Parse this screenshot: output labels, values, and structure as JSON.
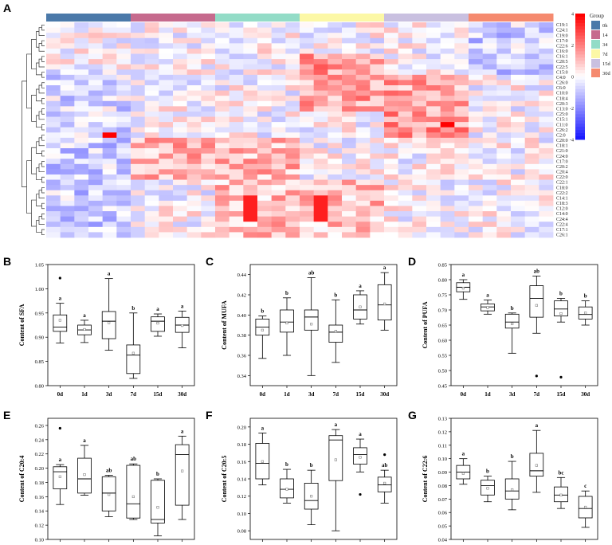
{
  "figure_letters": [
    "A",
    "B",
    "C",
    "D",
    "E",
    "F",
    "G"
  ],
  "colors": {
    "heat_low": "#1a1aff",
    "heat_mid": "#ffffff",
    "heat_high": "#ff0000",
    "box_stroke": "#000000",
    "box_fill": "#ffffff"
  },
  "chart_data": [
    {
      "type": "heatmap",
      "title": "",
      "legend_title": "Group",
      "groups": [
        {
          "name": "0h",
          "color": "#4b79a9"
        },
        {
          "name": "14",
          "color": "#c66a8d"
        },
        {
          "name": "34",
          "color": "#93dcc7"
        },
        {
          "name": "7d",
          "color": "#fcf8a6"
        },
        {
          "name": "15d",
          "color": "#c9c0e0"
        },
        {
          "name": "30d",
          "color": "#f58a6f"
        }
      ],
      "columns_per_group": 6,
      "rows": [
        "C19:1",
        "C24:1",
        "C19:0",
        "C17:0",
        "C22:6",
        "C16:0",
        "C16:1",
        "C20:5",
        "C22:5",
        "C15:0",
        "C4:0",
        "C26:0",
        "C6:0",
        "C10:0",
        "C18:4",
        "C20:3",
        "C13:0",
        "C25:0",
        "C15:1",
        "C11:0",
        "C26:2",
        "C2:0",
        "C20:0",
        "C18:1",
        "C21:0",
        "C24:0",
        "C17:0",
        "C20:2",
        "C20:4",
        "C22:0",
        "C22:1",
        "C18:0",
        "C22:2",
        "C14:1",
        "C18:3",
        "C12:0",
        "C14:0",
        "C24:4",
        "C22:4",
        "C17:1",
        "C26:1"
      ],
      "colorbar": {
        "min": -4,
        "max": 4,
        "ticks": [
          "4",
          "2",
          "0",
          "-2",
          "-4"
        ]
      }
    },
    {
      "type": "box",
      "panel": "B",
      "ylabel": "Content of SFA",
      "categories": [
        "0d",
        "1d",
        "3d",
        "7d",
        "15d",
        "30d"
      ],
      "ylim": [
        0.8,
        1.05
      ],
      "yticks": [
        "0.80",
        "0.85",
        "0.90",
        "0.95",
        "1.00",
        "1.05"
      ],
      "boxes": [
        {
          "whislo": 0.888,
          "q1": 0.912,
          "med": 0.921,
          "q3": 0.946,
          "whishi": 0.97,
          "mean": 0.935,
          "outliers": [
            1.022
          ],
          "letter": "a"
        },
        {
          "whislo": 0.889,
          "q1": 0.905,
          "med": 0.915,
          "q3": 0.925,
          "whishi": 0.935,
          "mean": 0.916,
          "outliers": [],
          "letter": "a"
        },
        {
          "whislo": 0.873,
          "q1": 0.897,
          "med": 0.933,
          "q3": 0.953,
          "whishi": 1.021,
          "mean": 0.93,
          "outliers": [],
          "letter": "a"
        },
        {
          "whislo": 0.815,
          "q1": 0.825,
          "med": 0.863,
          "q3": 0.884,
          "whishi": 0.95,
          "mean": 0.867,
          "outliers": [],
          "letter": "b"
        },
        {
          "whislo": 0.902,
          "q1": 0.912,
          "med": 0.933,
          "q3": 0.942,
          "whishi": 0.948,
          "mean": 0.929,
          "outliers": [],
          "letter": "a"
        },
        {
          "whislo": 0.878,
          "q1": 0.91,
          "med": 0.925,
          "q3": 0.941,
          "whishi": 0.954,
          "mean": 0.924,
          "outliers": [],
          "letter": "a"
        }
      ]
    },
    {
      "type": "box",
      "panel": "C",
      "ylabel": "Content of MUFA",
      "categories": [
        "0d",
        "1d",
        "3d",
        "7d",
        "15d",
        "30d"
      ],
      "ylim": [
        0.33,
        0.45
      ],
      "yticks": [
        "0.34",
        "0.36",
        "0.38",
        "0.40",
        "0.42",
        "0.44"
      ],
      "boxes": [
        {
          "whislo": 0.357,
          "q1": 0.38,
          "med": 0.388,
          "q3": 0.396,
          "whishi": 0.399,
          "mean": 0.385,
          "outliers": [],
          "letter": "b"
        },
        {
          "whislo": 0.36,
          "q1": 0.383,
          "med": 0.393,
          "q3": 0.405,
          "whishi": 0.417,
          "mean": 0.392,
          "outliers": [],
          "letter": "b"
        },
        {
          "whislo": 0.34,
          "q1": 0.385,
          "med": 0.398,
          "q3": 0.405,
          "whishi": 0.437,
          "mean": 0.391,
          "outliers": [],
          "letter": "ab"
        },
        {
          "whislo": 0.353,
          "q1": 0.373,
          "med": 0.383,
          "q3": 0.39,
          "whishi": 0.415,
          "mean": 0.384,
          "outliers": [],
          "letter": "b"
        },
        {
          "whislo": 0.391,
          "q1": 0.396,
          "med": 0.405,
          "q3": 0.42,
          "whishi": 0.424,
          "mean": 0.408,
          "outliers": [],
          "letter": "a"
        },
        {
          "whislo": 0.385,
          "q1": 0.395,
          "med": 0.41,
          "q3": 0.43,
          "whishi": 0.442,
          "mean": 0.411,
          "outliers": [],
          "letter": "a"
        }
      ]
    },
    {
      "type": "box",
      "panel": "D",
      "ylabel": "Content of PUFA",
      "categories": [
        "0d",
        "1d",
        "3d",
        "7d",
        "15d",
        "30d"
      ],
      "ylim": [
        0.45,
        0.85
      ],
      "yticks": [
        "0.45",
        "0.50",
        "0.55",
        "0.60",
        "0.65",
        "0.70",
        "0.75",
        "0.80",
        "0.85"
      ],
      "boxes": [
        {
          "whislo": 0.735,
          "q1": 0.76,
          "med": 0.775,
          "q3": 0.79,
          "whishi": 0.8,
          "mean": 0.772,
          "outliers": [],
          "letter": "a"
        },
        {
          "whislo": 0.686,
          "q1": 0.697,
          "med": 0.71,
          "q3": 0.72,
          "whishi": 0.733,
          "mean": 0.708,
          "outliers": [],
          "letter": "a"
        },
        {
          "whislo": 0.557,
          "q1": 0.64,
          "med": 0.66,
          "q3": 0.686,
          "whishi": 0.69,
          "mean": 0.654,
          "outliers": [],
          "letter": "b"
        },
        {
          "whislo": 0.623,
          "q1": 0.676,
          "med": 0.738,
          "q3": 0.78,
          "whishi": 0.812,
          "mean": 0.715,
          "outliers": [
            0.482
          ],
          "letter": "ab"
        },
        {
          "whislo": 0.66,
          "q1": 0.68,
          "med": 0.703,
          "q3": 0.73,
          "whishi": 0.738,
          "mean": 0.688,
          "outliers": [
            0.478
          ],
          "letter": "b"
        },
        {
          "whislo": 0.65,
          "q1": 0.67,
          "med": 0.685,
          "q3": 0.71,
          "whishi": 0.73,
          "mean": 0.69,
          "outliers": [],
          "letter": "b"
        }
      ]
    },
    {
      "type": "box",
      "panel": "E",
      "ylabel": "Content of C20:4",
      "categories": [
        "0d",
        "1d",
        "3d",
        "7d",
        "15d",
        "30d"
      ],
      "ylim": [
        0.1,
        0.27
      ],
      "yticks": [
        "0.10",
        "0.12",
        "0.14",
        "0.16",
        "0.18",
        "0.20",
        "0.22",
        "0.24",
        "0.26"
      ],
      "boxes": [
        {
          "whislo": 0.149,
          "q1": 0.171,
          "med": 0.195,
          "q3": 0.202,
          "whishi": 0.205,
          "mean": 0.188,
          "outliers": [
            0.256
          ],
          "letter": "a"
        },
        {
          "whislo": 0.162,
          "q1": 0.165,
          "med": 0.185,
          "q3": 0.214,
          "whishi": 0.232,
          "mean": 0.191,
          "outliers": [],
          "letter": "a"
        },
        {
          "whislo": 0.132,
          "q1": 0.14,
          "med": 0.165,
          "q3": 0.188,
          "whishi": 0.19,
          "mean": 0.163,
          "outliers": [],
          "letter": "ab"
        },
        {
          "whislo": 0.128,
          "q1": 0.13,
          "med": 0.15,
          "q3": 0.204,
          "whishi": 0.206,
          "mean": 0.16,
          "outliers": [],
          "letter": "ab"
        },
        {
          "whislo": 0.105,
          "q1": 0.123,
          "med": 0.128,
          "q3": 0.183,
          "whishi": 0.185,
          "mean": 0.145,
          "outliers": [],
          "letter": "b"
        },
        {
          "whislo": 0.128,
          "q1": 0.148,
          "med": 0.219,
          "q3": 0.233,
          "whishi": 0.245,
          "mean": 0.196,
          "outliers": [],
          "letter": "a"
        }
      ]
    },
    {
      "type": "box",
      "panel": "F",
      "ylabel": "Content of C20:5",
      "categories": [
        "0d",
        "1d",
        "3d",
        "7d",
        "15d",
        "30d"
      ],
      "ylim": [
        0.07,
        0.21
      ],
      "yticks": [
        "0.08",
        "0.10",
        "0.12",
        "0.14",
        "0.16",
        "0.18",
        "0.20"
      ],
      "boxes": [
        {
          "whislo": 0.133,
          "q1": 0.14,
          "med": 0.158,
          "q3": 0.181,
          "whishi": 0.193,
          "mean": 0.16,
          "outliers": [],
          "letter": "a"
        },
        {
          "whislo": 0.112,
          "q1": 0.118,
          "med": 0.128,
          "q3": 0.14,
          "whishi": 0.151,
          "mean": 0.128,
          "outliers": [],
          "letter": "b"
        },
        {
          "whislo": 0.087,
          "q1": 0.105,
          "med": 0.115,
          "q3": 0.135,
          "whishi": 0.15,
          "mean": 0.12,
          "outliers": [],
          "letter": "b"
        },
        {
          "whislo": 0.08,
          "q1": 0.138,
          "med": 0.185,
          "q3": 0.19,
          "whishi": 0.197,
          "mean": 0.162,
          "outliers": [],
          "letter": "a"
        },
        {
          "whislo": 0.148,
          "q1": 0.157,
          "med": 0.168,
          "q3": 0.176,
          "whishi": 0.186,
          "mean": 0.165,
          "outliers": [
            0.122
          ],
          "letter": "a"
        },
        {
          "whislo": 0.112,
          "q1": 0.125,
          "med": 0.133,
          "q3": 0.142,
          "whishi": 0.15,
          "mean": 0.135,
          "outliers": [
            0.168
          ],
          "letter": "ab"
        }
      ]
    },
    {
      "type": "box",
      "panel": "G",
      "ylabel": "Content of C22:6",
      "categories": [
        "0d",
        "1d",
        "3d",
        "7d",
        "15d",
        "30d"
      ],
      "ylim": [
        0.04,
        0.13
      ],
      "yticks": [
        "0.04",
        "0.05",
        "0.06",
        "0.07",
        "0.08",
        "0.09",
        "0.10",
        "0.11",
        "0.12",
        "0.13"
      ],
      "boxes": [
        {
          "whislo": 0.081,
          "q1": 0.085,
          "med": 0.09,
          "q3": 0.095,
          "whishi": 0.1,
          "mean": 0.089,
          "outliers": [],
          "letter": "a"
        },
        {
          "whislo": 0.068,
          "q1": 0.073,
          "med": 0.08,
          "q3": 0.084,
          "whishi": 0.087,
          "mean": 0.078,
          "outliers": [],
          "letter": "b"
        },
        {
          "whislo": 0.062,
          "q1": 0.07,
          "med": 0.076,
          "q3": 0.085,
          "whishi": 0.098,
          "mean": 0.077,
          "outliers": [],
          "letter": "b"
        },
        {
          "whislo": 0.075,
          "q1": 0.087,
          "med": 0.091,
          "q3": 0.104,
          "whishi": 0.121,
          "mean": 0.095,
          "outliers": [],
          "letter": "a"
        },
        {
          "whislo": 0.063,
          "q1": 0.068,
          "med": 0.073,
          "q3": 0.079,
          "whishi": 0.086,
          "mean": 0.073,
          "outliers": [],
          "letter": "bc"
        },
        {
          "whislo": 0.049,
          "q1": 0.056,
          "med": 0.063,
          "q3": 0.072,
          "whishi": 0.076,
          "mean": 0.064,
          "outliers": [],
          "letter": "c"
        }
      ]
    }
  ]
}
